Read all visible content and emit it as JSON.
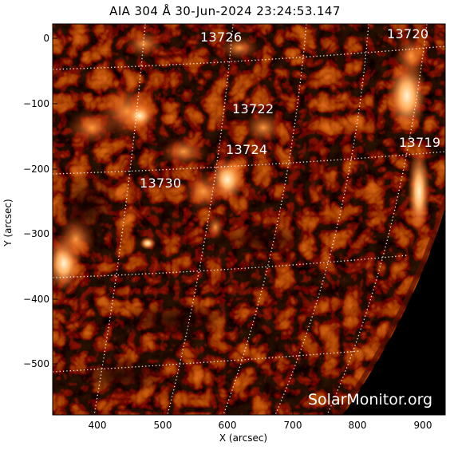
{
  "title": "AIA 304 Å 30-Jun-2024 23:24:53.147",
  "xlabel": "X (arcsec)",
  "ylabel": "Y (arcsec)",
  "x_ticks": [
    "400",
    "500",
    "600",
    "700",
    "800",
    "900"
  ],
  "y_ticks": [
    "0",
    "−100",
    "−200",
    "−300",
    "−400",
    "−500"
  ],
  "regions": [
    "13726",
    "13720",
    "13722",
    "13719",
    "13724",
    "13730"
  ],
  "watermark": "SolarMonitor.org",
  "colors": {
    "background": "#1a0000",
    "limb_dark": "#000000",
    "plasma_mid": "#7a1400",
    "plasma_bright": "#e05a10",
    "plasma_hot": "#ffe6b0",
    "grid": "#ffffff"
  },
  "chart_data": {
    "type": "image",
    "x_range": [
      330,
      935
    ],
    "y_range": [
      -570,
      25
    ],
    "grid": "heliographic dotted overlay"
  }
}
